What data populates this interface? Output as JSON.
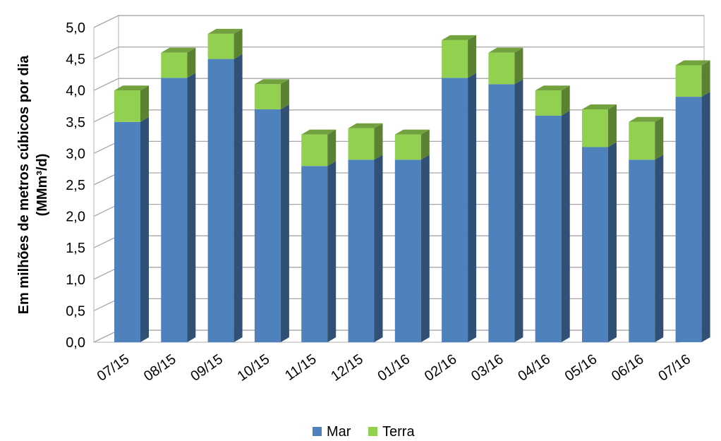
{
  "chart_data": {
    "type": "bar",
    "stacked": true,
    "three_d": true,
    "categories": [
      "07/15",
      "08/15",
      "09/15",
      "10/15",
      "11/15",
      "12/15",
      "01/16",
      "02/16",
      "03/16",
      "04/16",
      "05/16",
      "06/16",
      "07/16"
    ],
    "series": [
      {
        "name": "Mar",
        "color": "#4f81bd",
        "values": [
          3.5,
          4.2,
          4.5,
          3.7,
          2.8,
          2.9,
          2.9,
          4.2,
          4.1,
          3.6,
          3.1,
          2.9,
          3.9
        ]
      },
      {
        "name": "Terra",
        "color": "#92d050",
        "values": [
          0.5,
          0.4,
          0.4,
          0.4,
          0.5,
          0.5,
          0.4,
          0.6,
          0.5,
          0.4,
          0.6,
          0.6,
          0.5
        ]
      }
    ],
    "ylabel_line1": "Em milhões de metros cúbicos  por dia",
    "ylabel_line2": "(MMm³/d)",
    "ylim": [
      0,
      5.0
    ],
    "ytick_labels": [
      "0,0",
      "0,5",
      "1,0",
      "1,5",
      "2,0",
      "2,5",
      "3,0",
      "3,5",
      "4,0",
      "4,5",
      "5,0"
    ],
    "grid": true,
    "legend_position": "bottom"
  }
}
